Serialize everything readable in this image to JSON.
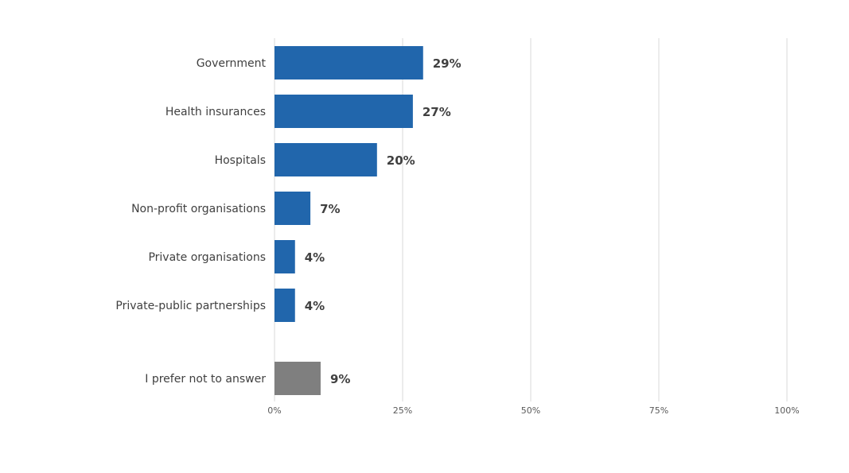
{
  "chart_data": {
    "type": "bar",
    "orientation": "horizontal",
    "categories": [
      "Government",
      "Health insurances",
      "Hospitals",
      "Non-profit organisations",
      "Private organisations",
      "Private-public partnerships",
      "I prefer not to answer"
    ],
    "values": [
      29,
      27,
      20,
      7,
      4,
      4,
      9
    ],
    "data_labels": [
      "29%",
      "27%",
      "20%",
      "7%",
      "4%",
      "4%",
      "9%"
    ],
    "xlim": [
      0,
      100
    ],
    "x_ticks": [
      0,
      25,
      50,
      75,
      100
    ],
    "x_tick_labels": [
      "0%",
      "25%",
      "50%",
      "75%",
      "100%"
    ],
    "grid": "vertical",
    "colors": {
      "main": "#2166ac",
      "no_answer": "#7f7f7f",
      "grid": "#d9d9d9"
    },
    "title": "",
    "xlabel": "",
    "ylabel": ""
  }
}
